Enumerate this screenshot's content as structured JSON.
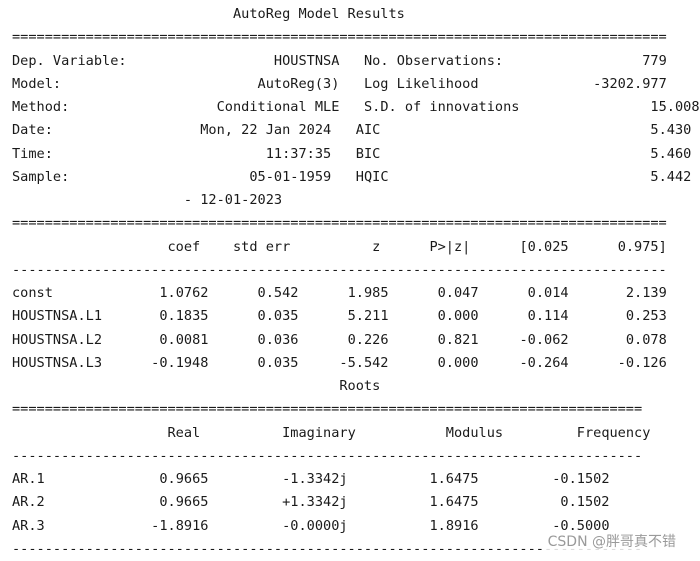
{
  "title": "AutoReg Model Results",
  "roots_title": "Roots",
  "rule_eq_wide": "================================================================================",
  "rule_dash_wide": "--------------------------------------------------------------------------------",
  "rule_eq_narrow": "=============================================================================",
  "rule_dash_narrow": "-----------------------------------------------------------------------------",
  "summary": [
    {
      "label": "Dep. Variable:",
      "value": "HOUSTNSA",
      "label2": "No. Observations:",
      "value2": "779"
    },
    {
      "label": "Model:",
      "value": "AutoReg(3)",
      "label2": "Log Likelihood",
      "value2": "-3202.977"
    },
    {
      "label": "Method:",
      "value": "Conditional MLE",
      "label2": "S.D. of innovations",
      "value2": "15.008"
    },
    {
      "label": "Date:",
      "value": "Mon, 22 Jan 2024",
      "label2": "AIC",
      "value2": "5.430"
    },
    {
      "label": "Time:",
      "value": "11:37:35",
      "label2": "BIC",
      "value2": "5.460"
    },
    {
      "label": "Sample:",
      "value": "05-01-1959",
      "label2": "HQIC",
      "value2": "5.442"
    },
    {
      "label": "",
      "value": "- 12-01-2023",
      "label2": "",
      "value2": ""
    }
  ],
  "coef_headers": [
    "coef",
    "std err",
    "z",
    "P>|z|",
    "[0.025",
    "0.975]"
  ],
  "coef_rows": [
    {
      "name": "const",
      "values": [
        "1.0762",
        "0.542",
        "1.985",
        "0.047",
        "0.014",
        "2.139"
      ]
    },
    {
      "name": "HOUSTNSA.L1",
      "values": [
        "0.1835",
        "0.035",
        "5.211",
        "0.000",
        "0.114",
        "0.253"
      ]
    },
    {
      "name": "HOUSTNSA.L2",
      "values": [
        "0.0081",
        "0.036",
        "0.226",
        "0.821",
        "-0.062",
        "0.078"
      ]
    },
    {
      "name": "HOUSTNSA.L3",
      "values": [
        "-0.1948",
        "0.035",
        "-5.542",
        "0.000",
        "-0.264",
        "-0.126"
      ]
    }
  ],
  "roots_headers": [
    "Real",
    "Imaginary",
    "Modulus",
    "Frequency"
  ],
  "roots_rows": [
    {
      "name": "AR.1",
      "values": [
        "0.9665",
        "-1.3342j",
        "1.6475",
        "-0.1502"
      ]
    },
    {
      "name": "AR.2",
      "values": [
        "0.9665",
        "+1.3342j",
        "1.6475",
        "0.1502"
      ]
    },
    {
      "name": "AR.3",
      "values": [
        "-1.8916",
        "-0.0000j",
        "1.8916",
        "-0.5000"
      ]
    }
  ],
  "watermark": "CSDN @胖哥真不错"
}
